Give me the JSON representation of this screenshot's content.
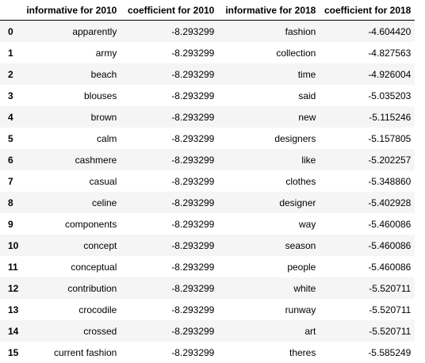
{
  "table": {
    "columns": [
      "",
      "informative for 2010",
      "coefficient for 2010",
      "informative for 2018",
      "coefficient for 2018"
    ],
    "rows": [
      {
        "index": "0",
        "inf2010": "apparently",
        "coef2010": "-8.293299",
        "inf2018": "fashion",
        "coef2018": "-4.604420"
      },
      {
        "index": "1",
        "inf2010": "army",
        "coef2010": "-8.293299",
        "inf2018": "collection",
        "coef2018": "-4.827563"
      },
      {
        "index": "2",
        "inf2010": "beach",
        "coef2010": "-8.293299",
        "inf2018": "time",
        "coef2018": "-4.926004"
      },
      {
        "index": "3",
        "inf2010": "blouses",
        "coef2010": "-8.293299",
        "inf2018": "said",
        "coef2018": "-5.035203"
      },
      {
        "index": "4",
        "inf2010": "brown",
        "coef2010": "-8.293299",
        "inf2018": "new",
        "coef2018": "-5.115246"
      },
      {
        "index": "5",
        "inf2010": "calm",
        "coef2010": "-8.293299",
        "inf2018": "designers",
        "coef2018": "-5.157805"
      },
      {
        "index": "6",
        "inf2010": "cashmere",
        "coef2010": "-8.293299",
        "inf2018": "like",
        "coef2018": "-5.202257"
      },
      {
        "index": "7",
        "inf2010": "casual",
        "coef2010": "-8.293299",
        "inf2018": "clothes",
        "coef2018": "-5.348860"
      },
      {
        "index": "8",
        "inf2010": "celine",
        "coef2010": "-8.293299",
        "inf2018": "designer",
        "coef2018": "-5.402928"
      },
      {
        "index": "9",
        "inf2010": "components",
        "coef2010": "-8.293299",
        "inf2018": "way",
        "coef2018": "-5.460086"
      },
      {
        "index": "10",
        "inf2010": "concept",
        "coef2010": "-8.293299",
        "inf2018": "season",
        "coef2018": "-5.460086"
      },
      {
        "index": "11",
        "inf2010": "conceptual",
        "coef2010": "-8.293299",
        "inf2018": "people",
        "coef2018": "-5.460086"
      },
      {
        "index": "12",
        "inf2010": "contribution",
        "coef2010": "-8.293299",
        "inf2018": "white",
        "coef2018": "-5.520711"
      },
      {
        "index": "13",
        "inf2010": "crocodile",
        "coef2010": "-8.293299",
        "inf2018": "runway",
        "coef2018": "-5.520711"
      },
      {
        "index": "14",
        "inf2010": "crossed",
        "coef2010": "-8.293299",
        "inf2018": "art",
        "coef2018": "-5.520711"
      },
      {
        "index": "15",
        "inf2010": "current fashion",
        "coef2010": "-8.293299",
        "inf2018": "theres",
        "coef2018": "-5.585249"
      }
    ]
  },
  "colors": {
    "row_stripe": "#f5f5f5",
    "row_plain": "#ffffff",
    "header_rule": "#000000"
  }
}
